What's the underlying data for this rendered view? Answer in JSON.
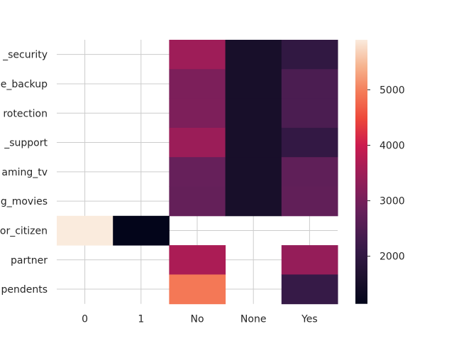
{
  "chart_data": {
    "type": "heatmap",
    "title": "",
    "xlabel": "",
    "ylabel": "",
    "x_categories": [
      "0",
      "1",
      "No",
      "None",
      "Yes"
    ],
    "y_categories": [
      "_security",
      "e_backup",
      "rotection",
      "_support",
      "aming_tv",
      "g_movies",
      "or_citizen",
      "partner",
      "pendents"
    ],
    "values": [
      [
        null,
        null,
        3500,
        1526,
        2019
      ],
      [
        null,
        null,
        3088,
        1526,
        2429
      ],
      [
        null,
        null,
        3095,
        1526,
        2422
      ],
      [
        null,
        null,
        3473,
        1526,
        2044
      ],
      [
        null,
        null,
        2810,
        1526,
        2707
      ],
      [
        null,
        null,
        2785,
        1526,
        2732
      ],
      [
        5901,
        1142,
        null,
        null,
        null
      ],
      [
        null,
        null,
        3641,
        null,
        3402
      ],
      [
        null,
        null,
        4933,
        null,
        2110
      ]
    ],
    "colorbar": {
      "vmin": 1142,
      "vmax": 5901,
      "ticks": [
        2000,
        3000,
        4000,
        5000
      ],
      "colormap": "rocket"
    },
    "grid": true
  }
}
